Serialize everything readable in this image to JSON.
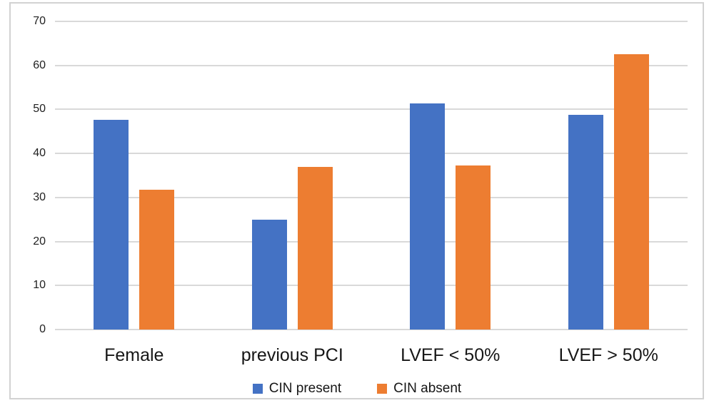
{
  "chart_data": {
    "type": "bar",
    "title": "",
    "xlabel": "",
    "ylabel": "",
    "categories": [
      "Female",
      "previous PCI",
      "LVEF < 50%",
      "LVEF > 50%"
    ],
    "series": [
      {
        "name": "CIN present",
        "color": "#4472C4",
        "values": [
          47.7,
          25.0,
          51.3,
          48.7
        ]
      },
      {
        "name": "CIN absent",
        "color": "#ED7D31",
        "values": [
          31.8,
          37.0,
          37.2,
          62.6
        ]
      }
    ],
    "ylim": [
      0,
      70
    ],
    "yticks": [
      0,
      10,
      20,
      30,
      40,
      50,
      60,
      70
    ],
    "grid": true,
    "gridline_color": "#d9d9d9",
    "legend_position": "bottom"
  }
}
